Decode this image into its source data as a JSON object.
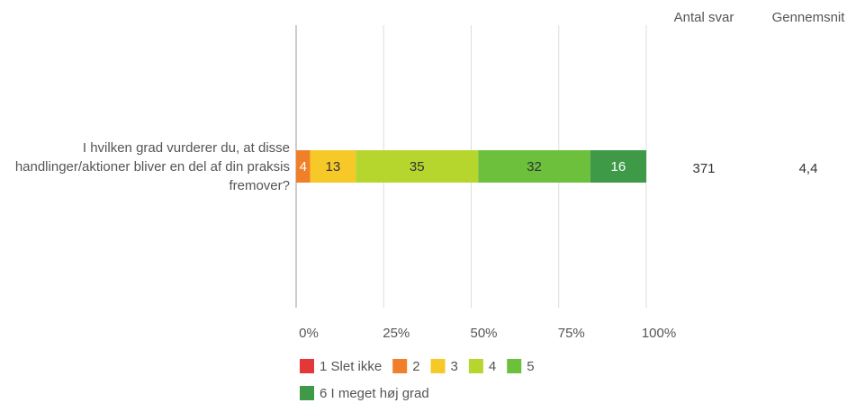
{
  "chart_data": {
    "type": "stacked_bar_horizontal",
    "categories": [
      "I hvilken grad vurderer du, at disse handlinger/aktioner bliver en del af din praksis fremover?"
    ],
    "series": [
      {
        "name": "1 Slet ikke",
        "color": "#e2383a",
        "values": [
          0
        ]
      },
      {
        "name": "2",
        "color": "#f07f2a",
        "values": [
          4
        ]
      },
      {
        "name": "3",
        "color": "#f6c928",
        "values": [
          13
        ]
      },
      {
        "name": "4",
        "color": "#b6d62e",
        "values": [
          35
        ]
      },
      {
        "name": "5",
        "color": "#6cc03c",
        "values": [
          32
        ]
      },
      {
        "name": "6 I meget høj grad",
        "color": "#3e9a47",
        "values": [
          16
        ]
      }
    ],
    "xlim": [
      0,
      100
    ],
    "xticks": [
      {
        "value": 0,
        "label": "0%"
      },
      {
        "value": 25,
        "label": "25%"
      },
      {
        "value": 50,
        "label": "50%"
      },
      {
        "value": 75,
        "label": "75%"
      },
      {
        "value": 100,
        "label": "100%"
      }
    ],
    "grid": true,
    "legend": "bottom",
    "extra_columns": [
      {
        "header": "Antal svar",
        "values": [
          "371"
        ]
      },
      {
        "header": "Gennemsnit",
        "values": [
          "4,4"
        ]
      }
    ]
  }
}
